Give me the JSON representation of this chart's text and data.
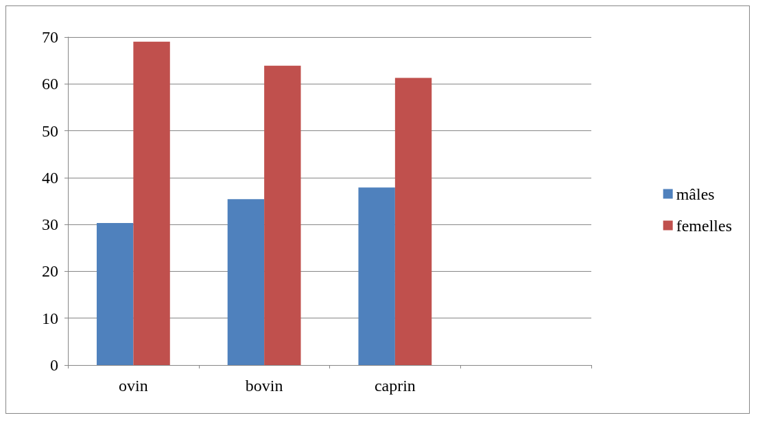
{
  "chart_data": {
    "type": "bar",
    "categories": [
      "ovin",
      "bovin",
      "caprin",
      null
    ],
    "series": [
      {
        "name": "mâles",
        "color": "#4f81bd",
        "values": [
          30.3,
          35.4,
          37.9,
          null
        ]
      },
      {
        "name": "femelles",
        "color": "#c0504d",
        "values": [
          69,
          63.9,
          61.3,
          null
        ]
      }
    ],
    "ylim": [
      0,
      70
    ],
    "yticks": [
      0,
      10,
      20,
      30,
      40,
      50,
      60,
      70
    ],
    "grid": "y",
    "legend": "right"
  }
}
